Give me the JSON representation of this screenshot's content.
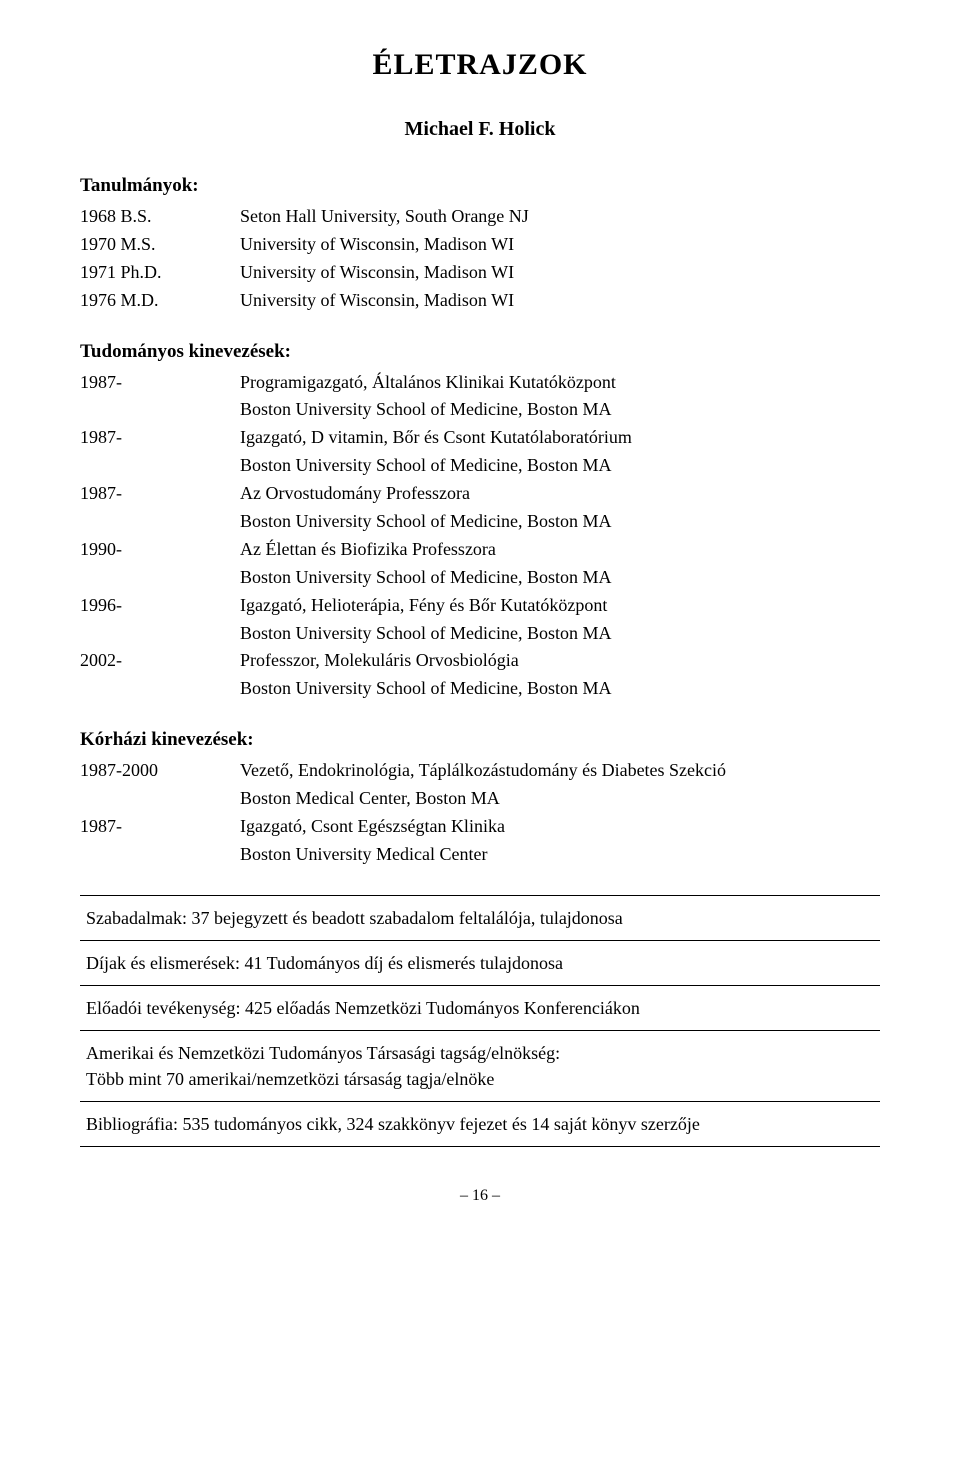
{
  "title": "ÉLETRAJZOK",
  "name": "Michael F. Holick",
  "studies": {
    "heading": "Tanulmányok:",
    "items": [
      {
        "year": "1968 B.S.",
        "desc": "Seton Hall University, South Orange NJ"
      },
      {
        "year": "1970 M.S.",
        "desc": "University of Wisconsin, Madison WI"
      },
      {
        "year": "1971 Ph.D.",
        "desc": "University of Wisconsin, Madison WI"
      },
      {
        "year": "1976 M.D.",
        "desc": "University of Wisconsin, Madison WI"
      }
    ]
  },
  "sci_appointments": {
    "heading": "Tudományos kinevezések:",
    "items": [
      {
        "year": "1987-",
        "line1": "Programigazgató, Általános Klinikai Kutatóközpont",
        "line2": "Boston University School of Medicine, Boston MA"
      },
      {
        "year": "1987-",
        "line1": "Igazgató, D vitamin, Bőr és Csont Kutatólaboratórium",
        "line2": "Boston University School of Medicine, Boston MA"
      },
      {
        "year": "1987-",
        "line1": "Az Orvostudomány Professzora",
        "line2": "Boston University School of Medicine, Boston MA"
      },
      {
        "year": "1990-",
        "line1": "Az Élettan és Biofizika Professzora",
        "line2": "Boston University School of Medicine, Boston MA"
      },
      {
        "year": "1996-",
        "line1": "Igazgató, Helioterápia, Fény és Bőr Kutatóközpont",
        "line2": "Boston University School of Medicine, Boston MA"
      },
      {
        "year": "2002-",
        "line1": "Professzor, Molekuláris Orvosbiológia",
        "line2": "Boston University School of Medicine, Boston MA"
      }
    ]
  },
  "hosp_appointments": {
    "heading": "Kórházi kinevezések:",
    "items": [
      {
        "year": "1987-2000",
        "line1": "Vezető, Endokrinológia, Táplálkozástudomány és Diabetes Szekció",
        "line2": "Boston Medical Center, Boston MA"
      },
      {
        "year": "1987-",
        "line1": "Igazgató, Csont Egészségtan Klinika",
        "line2": "Boston University Medical Center"
      }
    ]
  },
  "summary": {
    "items": [
      {
        "line1": "Szabadalmak: 37 bejegyzett és beadott szabadalom feltalálója, tulajdonosa"
      },
      {
        "line1": "Díjak és elismerések: 41 Tudományos díj és elismerés tulajdonosa"
      },
      {
        "line1": "Előadói tevékenység: 425 előadás Nemzetközi Tudományos Konferenciákon"
      },
      {
        "line1": "Amerikai és Nemzetközi Tudományos Társasági tagság/elnökség:",
        "line2": "Több mint 70 amerikai/nemzetközi társaság tagja/elnöke"
      },
      {
        "line1": "Bibliográfia: 535 tudományos cikk, 324 szakkönyv fejezet és 14 saját könyv szerzője"
      }
    ]
  },
  "page_number": "– 16 –"
}
